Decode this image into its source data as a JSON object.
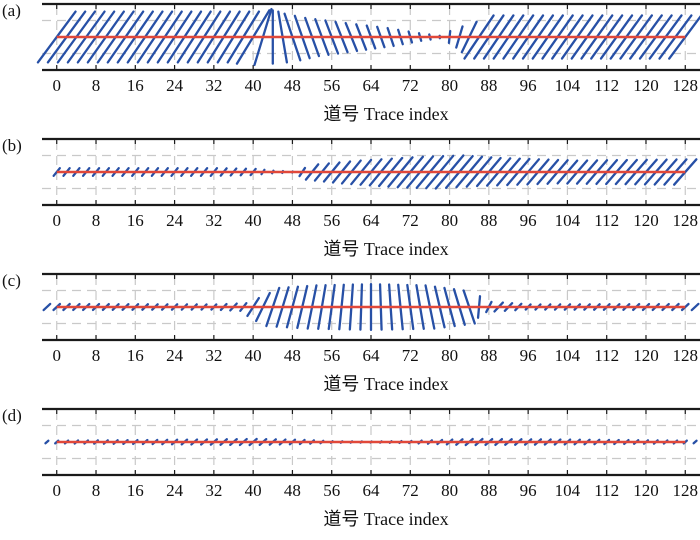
{
  "colors": {
    "vector": "#2750a6",
    "baseline": "#e0483a",
    "frame": "#1a1a1a",
    "grid": "#c9c9c9",
    "text": "#111111"
  },
  "chart_data": [
    {
      "type": "quiver",
      "panel_label": "(a)",
      "xlabel": "道号 Trace index",
      "x_ticks": [
        0,
        8,
        16,
        24,
        32,
        40,
        48,
        56,
        64,
        72,
        80,
        88,
        96,
        104,
        112,
        120,
        128
      ],
      "xlim": [
        -3,
        131
      ],
      "ylim": [
        -1.3,
        1.3
      ],
      "grid": true,
      "baseline": true,
      "trace_x_range": [
        0,
        128
      ],
      "trace_step": 2,
      "envelope": [
        [
          0,
          1.0
        ],
        [
          38,
          1.0
        ],
        [
          42,
          1.1
        ],
        [
          46,
          1.0
        ],
        [
          52,
          0.75
        ],
        [
          60,
          0.55
        ],
        [
          68,
          0.35
        ],
        [
          74,
          0.15
        ],
        [
          78,
          0.05
        ],
        [
          84,
          0.6
        ],
        [
          86,
          0.85
        ],
        [
          90,
          0.85
        ],
        [
          126,
          0.85
        ],
        [
          128,
          0.85
        ]
      ],
      "lean": [
        [
          0,
          0.55
        ],
        [
          40,
          0.45
        ],
        [
          44,
          0.0
        ],
        [
          48,
          -0.25
        ],
        [
          60,
          -0.3
        ],
        [
          76,
          -0.2
        ],
        [
          86,
          0.5
        ],
        [
          128,
          0.55
        ]
      ]
    },
    {
      "type": "quiver",
      "panel_label": "(b)",
      "xlabel": "道号 Trace index",
      "x_ticks": [
        0,
        8,
        16,
        24,
        32,
        40,
        48,
        56,
        64,
        72,
        80,
        88,
        96,
        104,
        112,
        120,
        128
      ],
      "xlim": [
        -3,
        131
      ],
      "ylim": [
        -1.3,
        1.3
      ],
      "grid": true,
      "baseline": true,
      "trace_x_range": [
        0,
        128
      ],
      "trace_step": 2,
      "envelope": [
        [
          0,
          0.15
        ],
        [
          32,
          0.15
        ],
        [
          40,
          0.12
        ],
        [
          44,
          0.05
        ],
        [
          48,
          0.02
        ],
        [
          52,
          0.3
        ],
        [
          60,
          0.45
        ],
        [
          72,
          0.6
        ],
        [
          80,
          0.65
        ],
        [
          88,
          0.55
        ],
        [
          104,
          0.45
        ],
        [
          128,
          0.5
        ]
      ],
      "lean": [
        [
          0,
          0.6
        ],
        [
          40,
          0.6
        ],
        [
          46,
          0.3
        ],
        [
          52,
          0.6
        ],
        [
          128,
          0.65
        ]
      ]
    },
    {
      "type": "quiver",
      "panel_label": "(c)",
      "xlabel": "道号 Trace index",
      "x_ticks": [
        0,
        8,
        16,
        24,
        32,
        40,
        48,
        56,
        64,
        72,
        80,
        88,
        96,
        104,
        112,
        120,
        128
      ],
      "xlim": [
        -3,
        131
      ],
      "ylim": [
        -1.3,
        1.3
      ],
      "grid": true,
      "baseline": true,
      "trace_x_range": [
        -2,
        130
      ],
      "trace_step": 2,
      "envelope": [
        [
          -2,
          0.12
        ],
        [
          32,
          0.1
        ],
        [
          38,
          0.15
        ],
        [
          44,
          0.75
        ],
        [
          52,
          0.85
        ],
        [
          64,
          0.9
        ],
        [
          76,
          0.85
        ],
        [
          84,
          0.65
        ],
        [
          88,
          0.2
        ],
        [
          96,
          0.1
        ],
        [
          130,
          0.12
        ]
      ],
      "lean": [
        [
          -2,
          0.8
        ],
        [
          36,
          0.7
        ],
        [
          44,
          0.25
        ],
        [
          56,
          0.1
        ],
        [
          64,
          0.0
        ],
        [
          72,
          -0.1
        ],
        [
          84,
          -0.25
        ],
        [
          90,
          0.7
        ],
        [
          130,
          0.8
        ]
      ]
    },
    {
      "type": "quiver",
      "panel_label": "(d)",
      "xlabel": "道号 Trace index",
      "x_ticks": [
        0,
        8,
        16,
        24,
        32,
        40,
        48,
        56,
        64,
        72,
        80,
        88,
        96,
        104,
        112,
        120,
        128
      ],
      "xlim": [
        -3,
        131
      ],
      "ylim": [
        -1.3,
        1.3
      ],
      "grid": true,
      "baseline": true,
      "trace_x_range": [
        -2,
        130
      ],
      "trace_step": 2,
      "envelope": [
        [
          -2,
          0.05
        ],
        [
          20,
          0.08
        ],
        [
          40,
          0.12
        ],
        [
          50,
          0.08
        ],
        [
          56,
          0.03
        ],
        [
          64,
          0.02
        ],
        [
          72,
          0.04
        ],
        [
          84,
          0.12
        ],
        [
          100,
          0.1
        ],
        [
          130,
          0.05
        ]
      ],
      "lean": [
        [
          -2,
          0.85
        ],
        [
          130,
          0.85
        ]
      ]
    }
  ]
}
